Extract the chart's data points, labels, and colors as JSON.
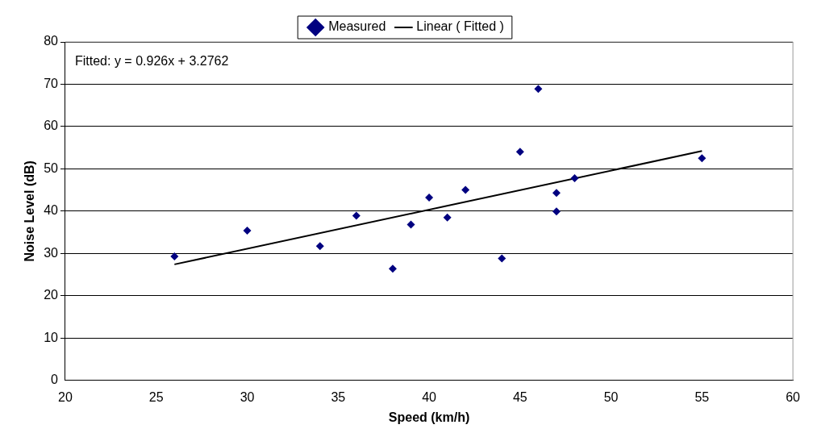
{
  "chart_data": {
    "type": "scatter",
    "xlabel": "Speed (km/h)",
    "ylabel": "Noise Level (dB)",
    "xlim": [
      20,
      60
    ],
    "xticks": [
      20,
      25,
      30,
      35,
      40,
      45,
      50,
      55,
      60
    ],
    "ylim": [
      0,
      80
    ],
    "yticks": [
      0,
      10,
      20,
      30,
      40,
      50,
      60,
      70,
      80
    ],
    "grid": "y",
    "legend": "top",
    "annotations": [
      "Fitted: y = 0.926x + 3.2762"
    ],
    "series": [
      {
        "name": "Measured",
        "type": "scatter",
        "marker": "diamond",
        "color": "#000080",
        "x": [
          26,
          30,
          34,
          36,
          38,
          39,
          40,
          41,
          42,
          44,
          45,
          46,
          47,
          47,
          48,
          55
        ],
        "values": [
          29.3,
          35.4,
          31.7,
          38.9,
          26.4,
          36.8,
          43.2,
          38.5,
          45.0,
          28.8,
          54.0,
          68.9,
          44.3,
          39.9,
          47.8,
          52.5
        ]
      },
      {
        "name": "Linear ( Fitted )",
        "type": "line",
        "marker": "none",
        "line_style": "solid",
        "color": "#000000",
        "x": [
          26,
          55
        ],
        "values": [
          27.4,
          54.2
        ]
      }
    ]
  }
}
